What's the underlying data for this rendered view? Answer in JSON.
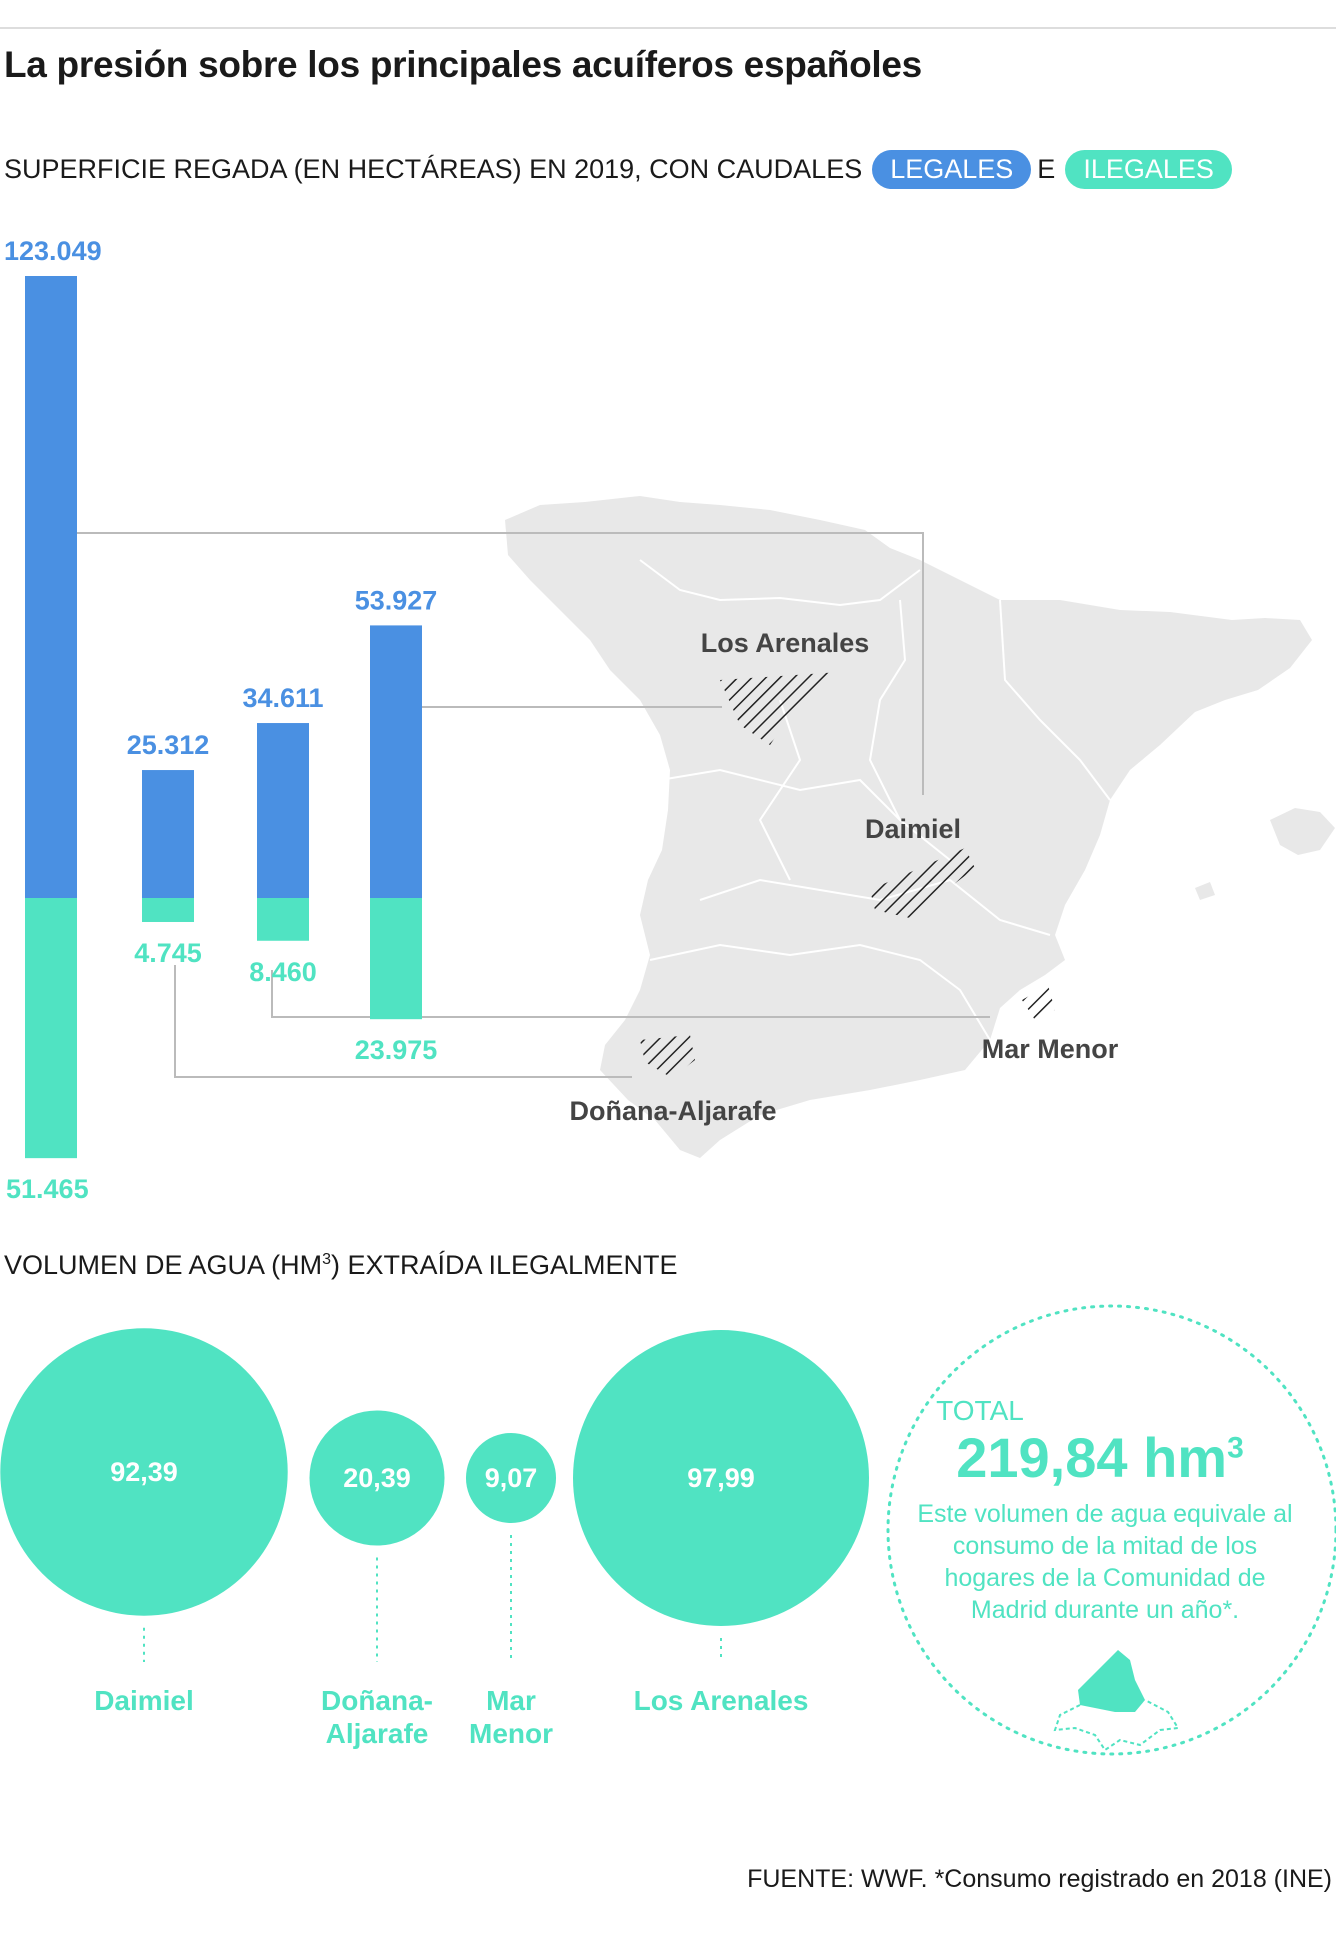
{
  "title": "La presión sobre los principales acuíferos españoles",
  "section1": {
    "subtitle_prefix": "SUPERFICIE REGADA (EN HECTÁREAS) EN 2019, CON CAUDALES",
    "legend_legal": "LEGALES",
    "connector": "E",
    "legend_illegal": "ILEGALES"
  },
  "colors": {
    "legal": "#4a90e2",
    "illegal": "#50e3c2",
    "map": "#e8e8e8",
    "lines": "#bbbbbb"
  },
  "chart_data": [
    {
      "type": "bar",
      "stacked": true,
      "title": "SUPERFICIE REGADA (EN HECTÁREAS) EN 2019, CON CAUDALES LEGALES E ILEGALES",
      "categories": [
        "Daimiel",
        "Doñana-Aljarafe",
        "Mar Menor",
        "Los Arenales"
      ],
      "series": [
        {
          "name": "LEGALES",
          "values": [
            123049,
            25312,
            34611,
            53927
          ],
          "labels": [
            "123.049",
            "25.312",
            "34.611",
            "53.927"
          ]
        },
        {
          "name": "ILEGALES",
          "values": [
            51465,
            4745,
            8460,
            23975
          ],
          "labels": [
            "51.465",
            "4.745",
            "8.460",
            "23.975"
          ]
        }
      ]
    },
    {
      "type": "bubble",
      "title": "VOLUMEN DE AGUA (HM3) EXTRAÍDA ILEGALMENTE",
      "categories": [
        "Daimiel",
        "Doñana-Aljarafe",
        "Mar Menor",
        "Los Arenales"
      ],
      "values": [
        92.39,
        20.39,
        9.07,
        97.99
      ],
      "labels": [
        "92,39",
        "20,39",
        "9,07",
        "97,99"
      ],
      "name_lines": [
        [
          "Daimiel"
        ],
        [
          "Doñana-",
          "Aljarafe"
        ],
        [
          "Mar",
          "Menor"
        ],
        [
          "Los Arenales"
        ]
      ]
    }
  ],
  "map_labels": [
    "Los Arenales",
    "Daimiel",
    "Mar Menor",
    "Doñana-Aljarafe"
  ],
  "section2": {
    "subtitle_pre": "VOLUMEN DE AGUA (HM",
    "subtitle_sup": "3",
    "subtitle_post": ") EXTRAÍDA ILEGALMENTE"
  },
  "total": {
    "label": "TOTAL",
    "value": "219,84 hm",
    "unit_sup": "3",
    "note": "Este volumen de agua equivale al consumo de la mitad de los hogares de la Comunidad de Madrid durante un año*."
  },
  "source": "FUENTE: WWF. *Consumo registrado en 2018 (INE)"
}
